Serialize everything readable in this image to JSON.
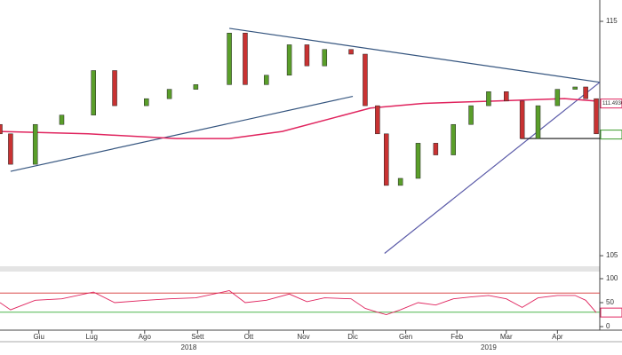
{
  "chart_data": [
    {
      "type": "candlestick",
      "x": [
        0,
        6,
        20,
        35,
        53,
        65,
        83,
        96,
        111,
        130,
        139,
        151,
        164,
        174,
        184,
        199,
        207,
        214,
        219,
        227,
        237,
        247,
        257,
        267,
        277,
        287,
        296,
        305,
        316,
        326,
        332,
        338
      ],
      "opens": [
        110.6,
        110.2,
        108.9,
        110.6,
        111.0,
        112.9,
        111.4,
        111.7,
        112.1,
        112.3,
        114.5,
        112.3,
        112.7,
        114.0,
        113.1,
        113.8,
        113.6,
        111.4,
        110.2,
        108.0,
        108.3,
        109.8,
        109.3,
        110.6,
        111.4,
        112.0,
        111.6,
        110.0,
        111.4,
        112.1,
        112.2,
        111.7
      ],
      "closes": [
        110.2,
        108.9,
        110.6,
        111.0,
        112.9,
        111.4,
        111.7,
        112.1,
        112.3,
        114.5,
        112.3,
        112.7,
        114.0,
        113.1,
        113.8,
        113.6,
        111.4,
        110.2,
        108.0,
        108.3,
        109.8,
        109.3,
        110.6,
        111.4,
        112.0,
        111.6,
        110.0,
        111.4,
        112.1,
        112.2,
        111.7,
        110.2
      ],
      "up_color": "#5a9e2a",
      "down_color": "#c83232",
      "moving_average": {
        "color": "#e0245e",
        "x": [
          0,
          50,
          100,
          130,
          160,
          190,
          210,
          240,
          280,
          320,
          338
        ],
        "values": [
          110.3,
          110.2,
          110.0,
          110.0,
          110.3,
          110.9,
          111.3,
          111.5,
          111.6,
          111.7,
          111.6
        ]
      },
      "trendlines": [
        {
          "color": "#35557f",
          "x": [
            6,
            200
          ],
          "values": [
            108.6,
            111.8
          ]
        },
        {
          "color": "#35557f",
          "x": [
            130,
            340
          ],
          "values": [
            114.7,
            112.4
          ]
        },
        {
          "color": "#5a5aa8",
          "x": [
            218,
            340
          ],
          "values": [
            105.1,
            112.4
          ]
        },
        {
          "color": "#111111",
          "x": [
            295,
            340
          ],
          "values": [
            110.0,
            110.0
          ]
        }
      ],
      "xlim": [
        0,
        340
      ],
      "ylim": [
        104.55,
        115.91
      ],
      "yticks": [
        105,
        115
      ],
      "price_labels": [
        {
          "color": "#e0245e",
          "value": 111.493,
          "label": "111.4930"
        },
        {
          "color": "#3a9a2a",
          "value": 110.1694
        }
      ]
    },
    {
      "type": "line",
      "x": [
        0,
        6,
        20,
        35,
        53,
        65,
        83,
        96,
        111,
        130,
        139,
        151,
        164,
        174,
        184,
        199,
        207,
        214,
        219,
        227,
        237,
        247,
        257,
        267,
        277,
        287,
        296,
        305,
        316,
        326,
        332,
        338
      ],
      "values": [
        50,
        35,
        55,
        58,
        72,
        50,
        55,
        58,
        60,
        75,
        50,
        55,
        68,
        52,
        60,
        58,
        38,
        30,
        25,
        35,
        50,
        45,
        58,
        62,
        65,
        58,
        40,
        60,
        65,
        65,
        55,
        29.3443
      ],
      "color": "#e0245e",
      "levels": [
        {
          "value": 70,
          "color": "#d33333"
        },
        {
          "value": 30,
          "color": "#33aa33"
        }
      ],
      "xlim": [
        0,
        340
      ],
      "ylim": [
        -7.4,
        111.1
      ],
      "yticks": [
        0,
        50,
        100
      ],
      "price_labels": [
        {
          "color": "#e0245e",
          "value": 29.3443
        }
      ],
      "xticks": [
        {
          "value": 22,
          "label": "Giu"
        },
        {
          "value": 52,
          "label": "Lug"
        },
        {
          "value": 82,
          "label": "Ago"
        },
        {
          "value": 112,
          "label": "Sett"
        },
        {
          "value": 141,
          "label": "Ott"
        },
        {
          "value": 172,
          "label": "Nov"
        },
        {
          "value": 200,
          "label": "Dic"
        },
        {
          "value": 230,
          "label": "Gen"
        },
        {
          "value": 259,
          "label": "Feb"
        },
        {
          "value": 287,
          "label": "Mar"
        },
        {
          "value": 316,
          "label": "Apr"
        }
      ],
      "year_labels": [
        {
          "value": 107,
          "label": "2018"
        },
        {
          "value": 277,
          "label": "2019"
        }
      ]
    }
  ]
}
